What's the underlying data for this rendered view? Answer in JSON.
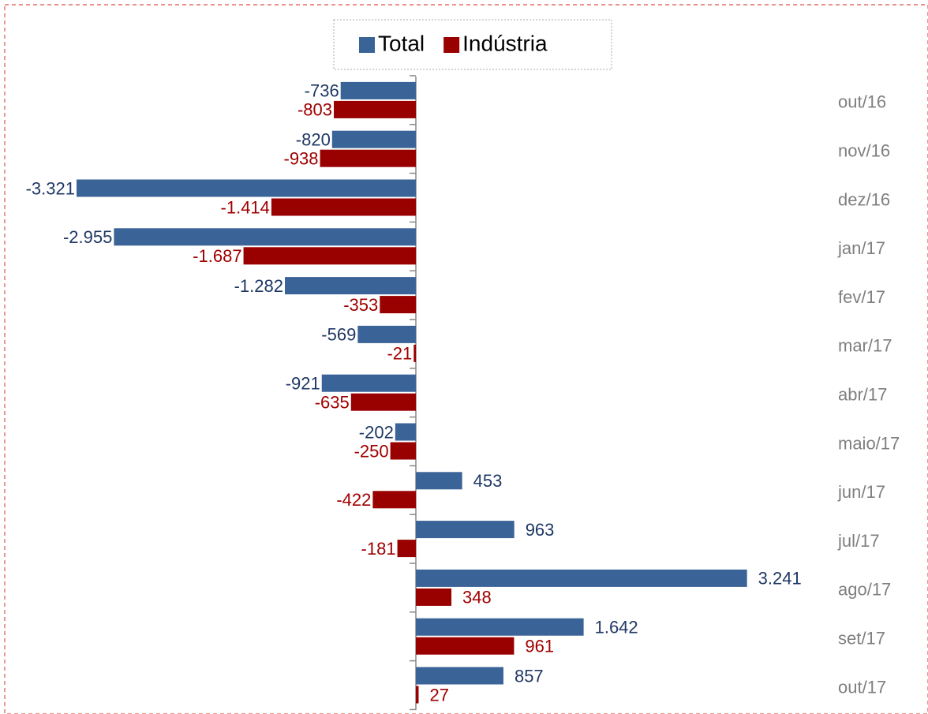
{
  "chart_data": {
    "type": "bar",
    "orientation": "horizontal",
    "categories": [
      "out/16",
      "nov/16",
      "dez/16",
      "jan/17",
      "fev/17",
      "mar/17",
      "abr/17",
      "maio/17",
      "jun/17",
      "jul/17",
      "ago/17",
      "set/17",
      "out/17"
    ],
    "series": [
      {
        "name": "Total",
        "color": "#3a6397",
        "values": [
          -736,
          -820,
          -3321,
          -2955,
          -1282,
          -569,
          -921,
          -202,
          453,
          963,
          3241,
          1642,
          857
        ],
        "value_labels": [
          "-736",
          "-820",
          "-3.321",
          "-2.955",
          "-1.282",
          "-569",
          "-921",
          "-202",
          "453",
          "963",
          "3.241",
          "1.642",
          "857"
        ],
        "label_color": "#1f3864"
      },
      {
        "name": "Indústria",
        "color": "#990000",
        "values": [
          -803,
          -938,
          -1414,
          -1687,
          -353,
          -21,
          -635,
          -250,
          -422,
          -181,
          348,
          961,
          27
        ],
        "value_labels": [
          "-803",
          "-938",
          "-1.414",
          "-1.687",
          "-353",
          "-21",
          "-635",
          "-250",
          "-422",
          "-181",
          "348",
          "961",
          "27"
        ],
        "label_color": "#a00000"
      }
    ],
    "legend": "top"
  }
}
